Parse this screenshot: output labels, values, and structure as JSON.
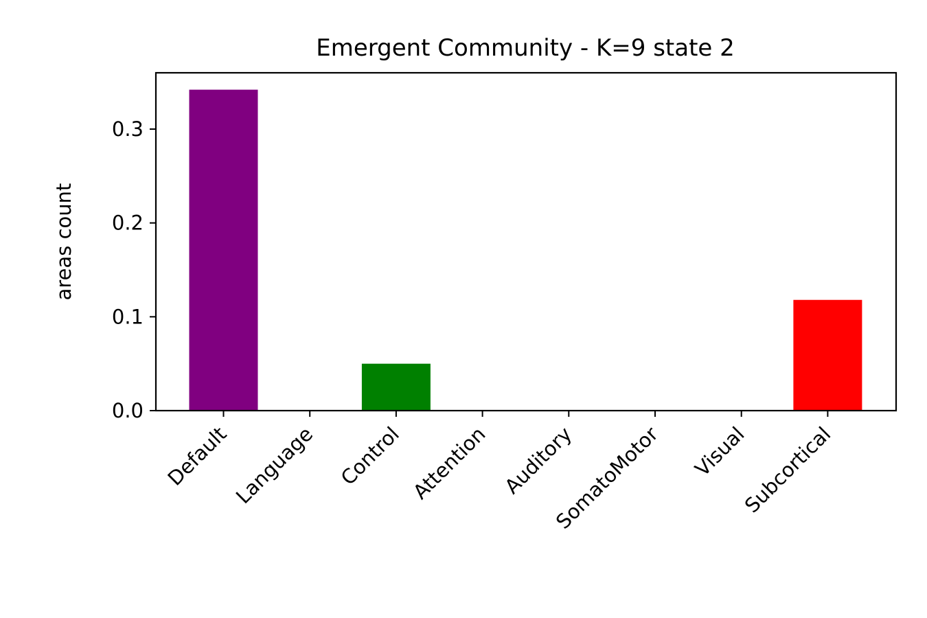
{
  "chart_data": {
    "type": "bar",
    "title": "Emergent Community - K=9 state 2",
    "xlabel": "",
    "ylabel": "areas count",
    "categories": [
      "Default",
      "Language",
      "Control",
      "Attention",
      "Auditory",
      "SomatoMotor",
      "Visual",
      "Subcortical"
    ],
    "values": [
      0.342,
      0.0,
      0.05,
      0.0,
      0.0,
      0.0,
      0.0,
      0.118
    ],
    "bar_colors": [
      "#800080",
      "#1f77b4",
      "#008000",
      "#1f77b4",
      "#1f77b4",
      "#1f77b4",
      "#1f77b4",
      "#ff0000"
    ],
    "ylim": [
      0,
      0.36
    ],
    "yticks": [
      0.0,
      0.1,
      0.2,
      0.3
    ],
    "ytick_labels": [
      "0.0",
      "0.1",
      "0.2",
      "0.3"
    ],
    "grid": false,
    "legend": "none"
  }
}
